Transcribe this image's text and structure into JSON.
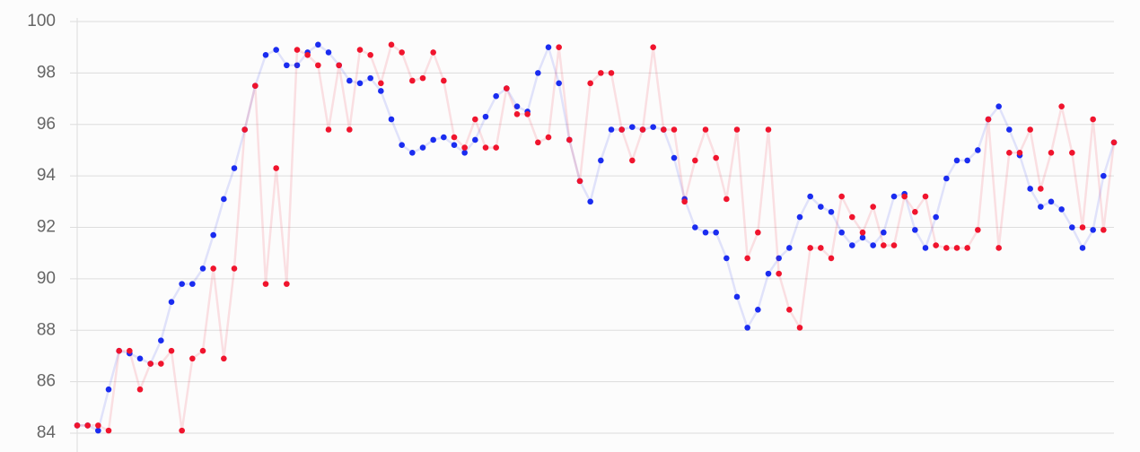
{
  "chart_data": {
    "type": "line",
    "series": [
      {
        "color": "#1a2cf0",
        "values": [
          84.3,
          84.3,
          84.1,
          85.7,
          87.2,
          87.1,
          86.9,
          86.7,
          87.6,
          89.1,
          89.8,
          89.8,
          90.4,
          91.7,
          93.1,
          94.3,
          95.8,
          97.5,
          98.7,
          98.9,
          98.3,
          98.3,
          98.8,
          99.1,
          98.8,
          98.3,
          97.7,
          97.6,
          97.8,
          97.3,
          96.2,
          95.2,
          94.9,
          95.1,
          95.4,
          95.5,
          95.2,
          94.9,
          95.4,
          96.3,
          97.1,
          97.4,
          96.7,
          96.5,
          98.0,
          99.0,
          97.6,
          95.4,
          93.8,
          93.0,
          94.6,
          95.8,
          95.8,
          95.9,
          95.8,
          95.9,
          95.8,
          94.7,
          93.1,
          92.0,
          91.8,
          91.8,
          90.8,
          89.3,
          88.1,
          88.8,
          90.2,
          90.8,
          91.2,
          92.4,
          93.2,
          92.8,
          92.6,
          91.8,
          91.3,
          91.6,
          91.3,
          91.8,
          93.2,
          93.3,
          91.9,
          91.2,
          92.4,
          93.9,
          94.6,
          94.6,
          95.0,
          96.2,
          96.7,
          95.8,
          94.8,
          93.5,
          92.8,
          93.0,
          92.7,
          92.0,
          91.2,
          91.9,
          94.0,
          95.3
        ]
      },
      {
        "color": "#f0142d",
        "values": [
          84.3,
          84.3,
          84.3,
          84.1,
          87.2,
          87.2,
          85.7,
          86.7,
          86.7,
          87.2,
          84.1,
          86.9,
          87.2,
          90.4,
          86.9,
          90.4,
          95.8,
          97.5,
          89.8,
          94.3,
          89.8,
          98.9,
          98.7,
          98.3,
          95.8,
          98.3,
          95.8,
          98.9,
          98.7,
          97.6,
          99.1,
          98.8,
          97.7,
          97.8,
          98.8,
          97.7,
          95.5,
          95.1,
          96.2,
          95.1,
          95.1,
          97.4,
          96.4,
          96.4,
          95.3,
          95.5,
          99.0,
          95.4,
          93.8,
          97.6,
          98.0,
          98.0,
          95.8,
          94.6,
          95.8,
          99.0,
          95.8,
          95.8,
          93.0,
          94.6,
          95.8,
          94.7,
          93.1,
          95.8,
          90.8,
          91.8,
          95.8,
          90.2,
          88.8,
          88.1,
          91.2,
          91.2,
          90.8,
          93.2,
          92.4,
          91.8,
          92.8,
          91.3,
          91.3,
          93.2,
          92.6,
          93.2,
          91.3,
          91.2,
          91.2,
          91.2,
          91.9,
          96.2,
          91.2,
          94.9,
          94.9,
          95.8,
          93.5,
          94.9,
          96.7,
          94.9,
          92.0,
          96.2,
          91.9,
          95.3
        ]
      }
    ],
    "ylim": [
      84,
      100
    ],
    "yticks": [
      84,
      86,
      88,
      90,
      92,
      94,
      96,
      98,
      100
    ],
    "grid": true
  }
}
